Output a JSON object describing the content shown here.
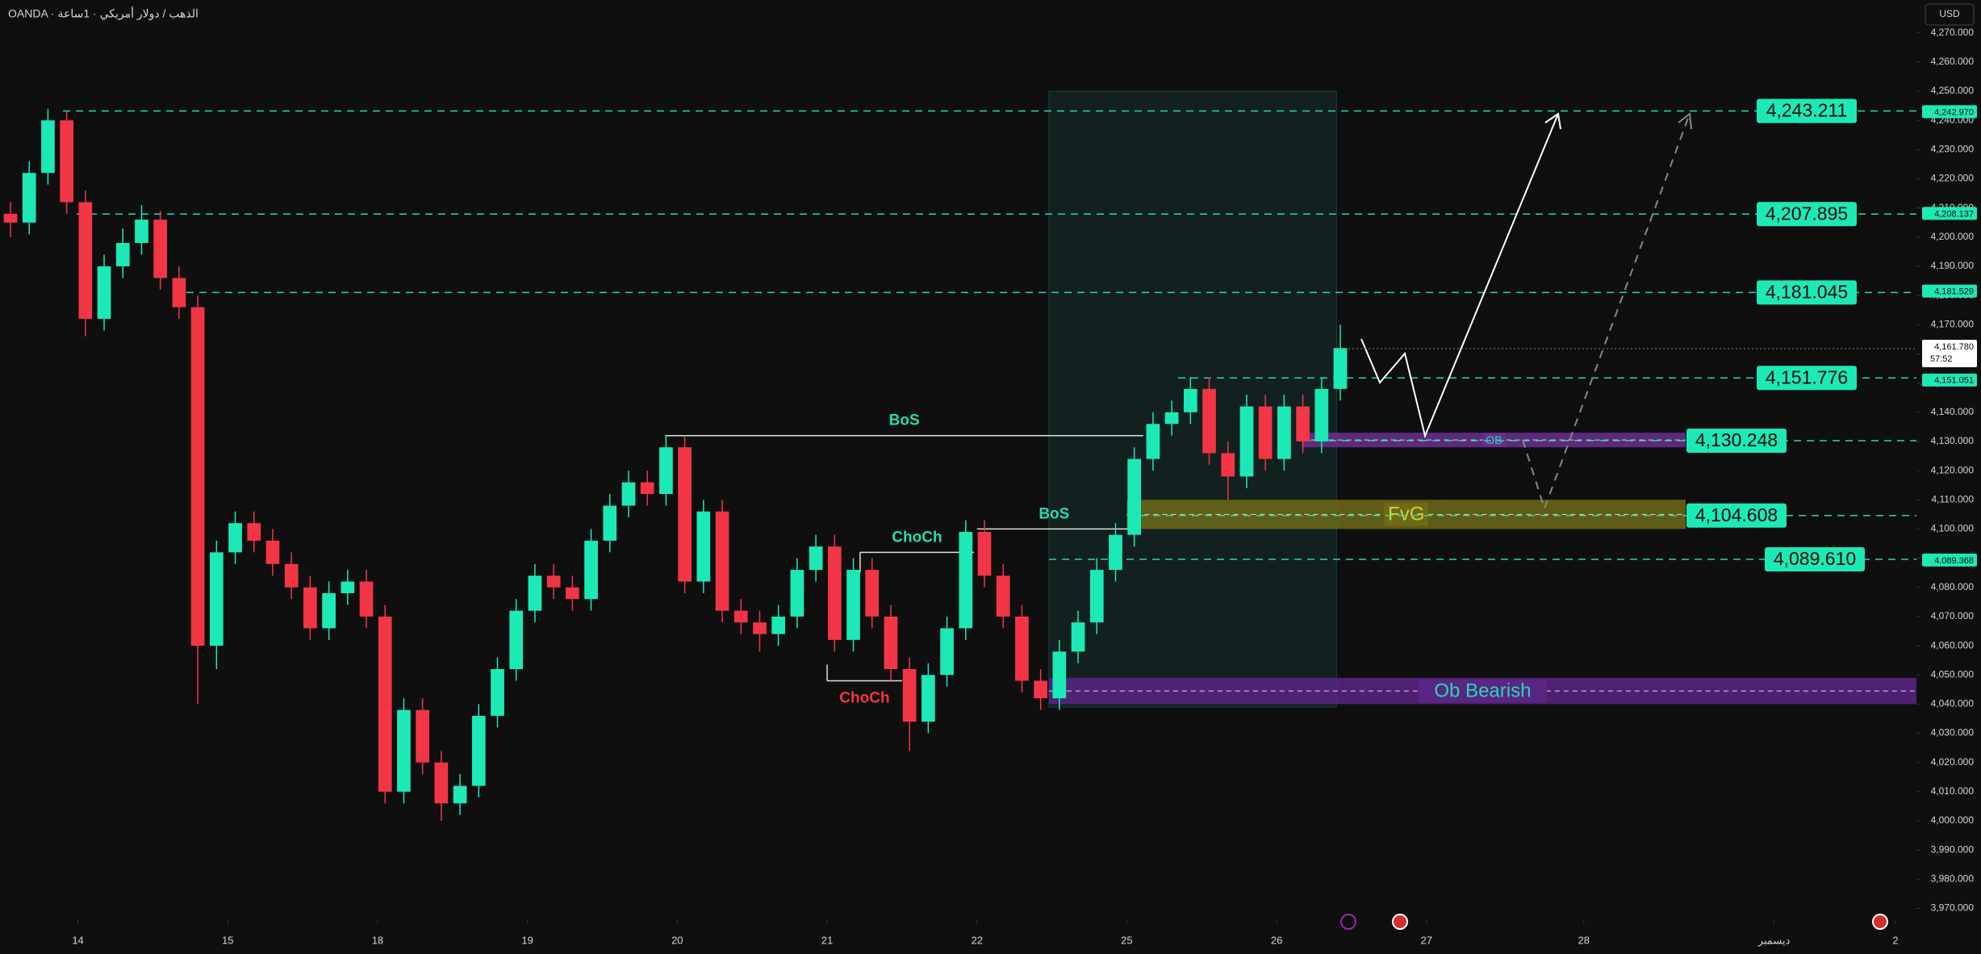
{
  "chart_data": {
    "type": "candlestick",
    "title": "OANDA · الذهب / دولار أمريكي · 1ساعة",
    "currency": "USD",
    "up_color": "#1de9b6",
    "down_color": "#f23645",
    "level_color": "#26d9b0",
    "xlim": [
      -0.52,
      12.27
    ],
    "ylim": [
      3966,
      4281.25
    ],
    "xticks": [
      {
        "value": 0,
        "label": "14"
      },
      {
        "value": 1,
        "label": "15"
      },
      {
        "value": 2,
        "label": "18"
      },
      {
        "value": 3,
        "label": "19"
      },
      {
        "value": 4,
        "label": "20"
      },
      {
        "value": 5,
        "label": "21"
      },
      {
        "value": 6,
        "label": "22"
      },
      {
        "value": 7,
        "label": "25"
      },
      {
        "value": 8,
        "label": "26"
      },
      {
        "value": 9,
        "label": "27"
      },
      {
        "value": 10.05,
        "label": "28"
      },
      {
        "value": 11.32,
        "label": "ديسمبر"
      },
      {
        "value": 12.13,
        "label": "2"
      }
    ],
    "yticks": [
      {
        "value": 3970,
        "label": "3,970.000"
      },
      {
        "value": 3980,
        "label": "3,980.000"
      },
      {
        "value": 3990,
        "label": "3,990.000"
      },
      {
        "value": 4000,
        "label": "4,000.000"
      },
      {
        "value": 4010,
        "label": "4,010.000"
      },
      {
        "value": 4020,
        "label": "4,020.000"
      },
      {
        "value": 4030,
        "label": "4,030.000"
      },
      {
        "value": 4040,
        "label": "4,040.000"
      },
      {
        "value": 4050,
        "label": "4,050.000"
      },
      {
        "value": 4060,
        "label": "4,060.000"
      },
      {
        "value": 4070,
        "label": "4,070.000"
      },
      {
        "value": 4080,
        "label": "4,080.000"
      },
      {
        "value": 4090,
        "label": "4,090.000"
      },
      {
        "value": 4100,
        "label": "4,100.000"
      },
      {
        "value": 4110,
        "label": "4,110.000"
      },
      {
        "value": 4120,
        "label": "4,120.000"
      },
      {
        "value": 4130,
        "label": "4,130.000"
      },
      {
        "value": 4140,
        "label": "4,140.000"
      },
      {
        "value": 4150,
        "label": "4,150.000"
      },
      {
        "value": 4160,
        "label": "4,160.000"
      },
      {
        "value": 4170,
        "label": "4,170.000"
      },
      {
        "value": 4180,
        "label": "4,180.000"
      },
      {
        "value": 4190,
        "label": "4,190.000"
      },
      {
        "value": 4200,
        "label": "4,200.000"
      },
      {
        "value": 4210,
        "label": "4,210.000"
      },
      {
        "value": 4220,
        "label": "4,220.000"
      },
      {
        "value": 4230,
        "label": "4,230.000"
      },
      {
        "value": 4240,
        "label": "4,240.000"
      },
      {
        "value": 4250,
        "label": "4,250.000"
      },
      {
        "value": 4260,
        "label": "4,260.000"
      },
      {
        "value": 4270,
        "label": "4,270.000"
      }
    ],
    "x": [
      -0.45,
      -0.325,
      -0.2,
      -0.075,
      0.05,
      0.175,
      0.3,
      0.425,
      0.55,
      0.675,
      0.8,
      0.925,
      1.05,
      1.175,
      1.3,
      1.425,
      1.55,
      1.675,
      1.8,
      1.925,
      2.05,
      2.175,
      2.3,
      2.425,
      2.55,
      2.675,
      2.8,
      2.925,
      3.05,
      3.175,
      3.3,
      3.425,
      3.55,
      3.675,
      3.8,
      3.925,
      4.05,
      4.175,
      4.3,
      4.425,
      4.55,
      4.675,
      4.8,
      4.925,
      5.05,
      5.175,
      5.3,
      5.425,
      5.55,
      5.675,
      5.8,
      5.925,
      6.05,
      6.175,
      6.3,
      6.425,
      6.55,
      6.675,
      6.8,
      6.925,
      7.05,
      7.175,
      7.3,
      7.425,
      7.55,
      7.675,
      7.8,
      7.925,
      8.05,
      8.175,
      8.3,
      8.425
    ],
    "candles": [
      [
        4208,
        4212,
        4200,
        4205
      ],
      [
        4205,
        4226,
        4201,
        4222
      ],
      [
        4222,
        4244,
        4218,
        4240
      ],
      [
        4240,
        4243,
        4208,
        4212
      ],
      [
        4212,
        4216,
        4166,
        4172
      ],
      [
        4172,
        4194,
        4168,
        4190
      ],
      [
        4190,
        4203,
        4186,
        4198
      ],
      [
        4198,
        4211,
        4194,
        4206
      ],
      [
        4206,
        4209,
        4182,
        4186
      ],
      [
        4186,
        4190,
        4172,
        4176
      ],
      [
        4176,
        4180,
        4040,
        4060
      ],
      [
        4060,
        4096,
        4052,
        4092
      ],
      [
        4092,
        4106,
        4088,
        4102
      ],
      [
        4102,
        4106,
        4092,
        4096
      ],
      [
        4096,
        4100,
        4084,
        4088
      ],
      [
        4088,
        4092,
        4076,
        4080
      ],
      [
        4080,
        4084,
        4062,
        4066
      ],
      [
        4066,
        4082,
        4062,
        4078
      ],
      [
        4078,
        4086,
        4074,
        4082
      ],
      [
        4082,
        4086,
        4066,
        4070
      ],
      [
        4070,
        4074,
        4006,
        4010
      ],
      [
        4010,
        4042,
        4006,
        4038
      ],
      [
        4038,
        4042,
        4016,
        4020
      ],
      [
        4020,
        4024,
        4000,
        4006
      ],
      [
        4006,
        4016,
        4002,
        4012
      ],
      [
        4012,
        4040,
        4008,
        4036
      ],
      [
        4036,
        4056,
        4032,
        4052
      ],
      [
        4052,
        4076,
        4048,
        4072
      ],
      [
        4072,
        4088,
        4068,
        4084
      ],
      [
        4084,
        4088,
        4076,
        4080
      ],
      [
        4080,
        4084,
        4072,
        4076
      ],
      [
        4076,
        4100,
        4072,
        4096
      ],
      [
        4096,
        4112,
        4092,
        4108
      ],
      [
        4108,
        4120,
        4104,
        4116
      ],
      [
        4116,
        4120,
        4108,
        4112
      ],
      [
        4112,
        4132,
        4108,
        4128
      ],
      [
        4128,
        4132,
        4078,
        4082
      ],
      [
        4082,
        4110,
        4078,
        4106
      ],
      [
        4106,
        4110,
        4068,
        4072
      ],
      [
        4072,
        4076,
        4064,
        4068
      ],
      [
        4068,
        4072,
        4058,
        4064
      ],
      [
        4064,
        4074,
        4060,
        4070
      ],
      [
        4070,
        4090,
        4066,
        4086
      ],
      [
        4086,
        4098,
        4082,
        4094
      ],
      [
        4094,
        4098,
        4058,
        4062
      ],
      [
        4062,
        4090,
        4058,
        4086
      ],
      [
        4086,
        4090,
        4066,
        4070
      ],
      [
        4070,
        4074,
        4048,
        4052
      ],
      [
        4052,
        4056,
        4024,
        4034
      ],
      [
        4034,
        4054,
        4030,
        4050
      ],
      [
        4050,
        4070,
        4046,
        4066
      ],
      [
        4066,
        4103,
        4062,
        4099
      ],
      [
        4099,
        4103,
        4080,
        4084
      ],
      [
        4084,
        4088,
        4066,
        4070
      ],
      [
        4070,
        4074,
        4044,
        4048
      ],
      [
        4048,
        4052,
        4038,
        4042
      ],
      [
        4042,
        4062,
        4038,
        4058
      ],
      [
        4058,
        4072,
        4054,
        4068
      ],
      [
        4068,
        4090,
        4064,
        4086
      ],
      [
        4086,
        4102,
        4082,
        4098
      ],
      [
        4098,
        4128,
        4094,
        4124
      ],
      [
        4124,
        4140,
        4120,
        4136
      ],
      [
        4136,
        4144,
        4132,
        4140
      ],
      [
        4140,
        4152,
        4136,
        4148
      ],
      [
        4148,
        4152,
        4122,
        4126
      ],
      [
        4126,
        4130,
        4110,
        4118
      ],
      [
        4118,
        4146,
        4114,
        4142
      ],
      [
        4142,
        4146,
        4120,
        4124
      ],
      [
        4124,
        4146,
        4120,
        4142
      ],
      [
        4142,
        4146,
        4126,
        4130
      ],
      [
        4130,
        4152,
        4126,
        4148
      ],
      [
        4148,
        4170,
        4144,
        4162
      ]
    ],
    "levels": [
      {
        "value": 4243.211,
        "label": "4,243.211"
      },
      {
        "value": 4207.895,
        "label": "4,207.895"
      },
      {
        "value": 4181.045,
        "label": "4,181.045"
      },
      {
        "value": 4151.776,
        "label": "4,151.776"
      },
      {
        "value": 4130.248,
        "label": "4,130.248"
      },
      {
        "value": 4104.608,
        "label": "4,104.608"
      },
      {
        "value": 4089.61,
        "label": "4,089.610"
      }
    ],
    "axis_tags": [
      {
        "value": 4242.97,
        "label": "4,242.970"
      },
      {
        "value": 4208.137,
        "label": "4,208.137"
      },
      {
        "value": 4181.529,
        "label": "4,181.529"
      },
      {
        "value": 4151.051,
        "label": "4,151.051"
      },
      {
        "value": 4089.368,
        "label": "4,089.368"
      }
    ],
    "last_price": {
      "value": 4161.78,
      "label": "4,161.780",
      "countdown": "57:52"
    },
    "range_box": {
      "x": [
        6.48,
        8.4
      ],
      "y": [
        4039,
        4250
      ]
    },
    "zones": [
      {
        "label": "OB",
        "x": [
          8.17,
          10.73
        ],
        "y": [
          4128,
          4133
        ],
        "color": "#6b2f8f",
        "text_color": "#26d9b0"
      },
      {
        "label": "FvG",
        "x": [
          7.0,
          10.73
        ],
        "y": [
          4100,
          4110
        ],
        "color": "#6f6a16",
        "text_color": "#c8d63a"
      },
      {
        "label": "Ob Bearish",
        "x": [
          6.48,
          12.27
        ],
        "y": [
          4040,
          4049
        ],
        "color": "#5a2585",
        "text_color": "#26d9b0"
      }
    ],
    "structure": [
      {
        "label": "BoS",
        "x": [
          3.92,
          7.11
        ],
        "y": 4132,
        "color": "#26d9b0",
        "label_side": "above"
      },
      {
        "label": "BoS",
        "x": [
          6.0,
          7.03
        ],
        "y": 4100,
        "color": "#26d9b0",
        "label_side": "above"
      },
      {
        "label": "ChoCh",
        "x": [
          5.22,
          5.98
        ],
        "y": 4092,
        "color": "#26d9b0",
        "label_side": "above"
      },
      {
        "label": "ChoCh",
        "x": [
          5.0,
          5.5
        ],
        "y": 4048,
        "color": "#f23645",
        "label_side": "below"
      }
    ]
  }
}
